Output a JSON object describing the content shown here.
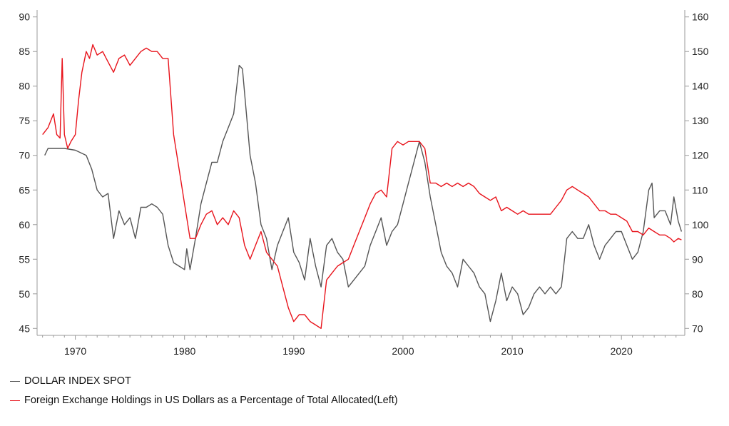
{
  "chart_data": {
    "type": "line",
    "x_ticks": [
      1970,
      1980,
      1990,
      2000,
      2010,
      2020
    ],
    "xlim": [
      1966.5,
      2025.8
    ],
    "y_left": {
      "ticks": [
        45,
        50,
        55,
        60,
        65,
        70,
        75,
        80,
        85,
        90
      ],
      "ylim": [
        44,
        91
      ]
    },
    "y_right": {
      "ticks": [
        70,
        80,
        90,
        100,
        110,
        120,
        130,
        140,
        150,
        160
      ],
      "ylim": [
        68,
        162
      ]
    },
    "grid": false,
    "legend_position": "bottom-left",
    "series": [
      {
        "name": "DOLLAR INDEX SPOT",
        "axis": "right",
        "color": "#555555",
        "points": [
          [
            1967.2,
            120
          ],
          [
            1967.5,
            122
          ],
          [
            1968,
            122
          ],
          [
            1969,
            122
          ],
          [
            1970,
            121.5
          ],
          [
            1971,
            120
          ],
          [
            1971.5,
            116
          ],
          [
            1972,
            110
          ],
          [
            1972.5,
            108
          ],
          [
            1973,
            109
          ],
          [
            1973.5,
            96
          ],
          [
            1974,
            104
          ],
          [
            1974.5,
            100
          ],
          [
            1975,
            102
          ],
          [
            1975.5,
            96
          ],
          [
            1976,
            105
          ],
          [
            1976.5,
            105
          ],
          [
            1977,
            106
          ],
          [
            1977.5,
            105
          ],
          [
            1978,
            103
          ],
          [
            1978.5,
            94
          ],
          [
            1979,
            89
          ],
          [
            1979.5,
            88
          ],
          [
            1980,
            87
          ],
          [
            1980.2,
            93
          ],
          [
            1980.5,
            87
          ],
          [
            1981,
            96
          ],
          [
            1981.5,
            106
          ],
          [
            1982,
            112
          ],
          [
            1982.5,
            118
          ],
          [
            1983,
            118
          ],
          [
            1983.5,
            124
          ],
          [
            1984,
            128
          ],
          [
            1984.5,
            132
          ],
          [
            1985,
            146
          ],
          [
            1985.3,
            145
          ],
          [
            1985.5,
            138
          ],
          [
            1986,
            120
          ],
          [
            1986.5,
            112
          ],
          [
            1987,
            100
          ],
          [
            1987.5,
            96
          ],
          [
            1988,
            87
          ],
          [
            1988.5,
            94
          ],
          [
            1989,
            98
          ],
          [
            1989.5,
            102
          ],
          [
            1990,
            92
          ],
          [
            1990.5,
            89
          ],
          [
            1991,
            84
          ],
          [
            1991.5,
            96
          ],
          [
            1992,
            88
          ],
          [
            1992.5,
            82
          ],
          [
            1993,
            94
          ],
          [
            1993.5,
            96
          ],
          [
            1994,
            92
          ],
          [
            1994.5,
            90
          ],
          [
            1995,
            82
          ],
          [
            1995.5,
            84
          ],
          [
            1996,
            86
          ],
          [
            1996.5,
            88
          ],
          [
            1997,
            94
          ],
          [
            1997.5,
            98
          ],
          [
            1998,
            102
          ],
          [
            1998.5,
            94
          ],
          [
            1999,
            98
          ],
          [
            1999.5,
            100
          ],
          [
            2000,
            106
          ],
          [
            2000.5,
            112
          ],
          [
            2001,
            118
          ],
          [
            2001.5,
            124
          ],
          [
            2002,
            118
          ],
          [
            2002.5,
            108
          ],
          [
            2003,
            100
          ],
          [
            2003.5,
            92
          ],
          [
            2004,
            88
          ],
          [
            2004.5,
            86
          ],
          [
            2005,
            82
          ],
          [
            2005.5,
            90
          ],
          [
            2006,
            88
          ],
          [
            2006.5,
            86
          ],
          [
            2007,
            82
          ],
          [
            2007.5,
            80
          ],
          [
            2008,
            72
          ],
          [
            2008.5,
            78
          ],
          [
            2009,
            86
          ],
          [
            2009.5,
            78
          ],
          [
            2010,
            82
          ],
          [
            2010.5,
            80
          ],
          [
            2011,
            74
          ],
          [
            2011.5,
            76
          ],
          [
            2012,
            80
          ],
          [
            2012.5,
            82
          ],
          [
            2013,
            80
          ],
          [
            2013.5,
            82
          ],
          [
            2014,
            80
          ],
          [
            2014.5,
            82
          ],
          [
            2015,
            96
          ],
          [
            2015.5,
            98
          ],
          [
            2016,
            96
          ],
          [
            2016.5,
            96
          ],
          [
            2017,
            100
          ],
          [
            2017.5,
            94
          ],
          [
            2018,
            90
          ],
          [
            2018.5,
            94
          ],
          [
            2019,
            96
          ],
          [
            2019.5,
            98
          ],
          [
            2020,
            98
          ],
          [
            2020.5,
            94
          ],
          [
            2021,
            90
          ],
          [
            2021.5,
            92
          ],
          [
            2022,
            98
          ],
          [
            2022.5,
            110
          ],
          [
            2022.8,
            112
          ],
          [
            2023,
            102
          ],
          [
            2023.5,
            104
          ],
          [
            2024,
            104
          ],
          [
            2024.5,
            100
          ],
          [
            2024.8,
            108
          ],
          [
            2025.2,
            101
          ],
          [
            2025.5,
            98
          ]
        ]
      },
      {
        "name": "Foreign Exchange Holdings in US Dollars as a Percentage of Total Allocated(Left)",
        "axis": "left",
        "color": "#e8131b",
        "points": [
          [
            1967,
            73
          ],
          [
            1967.5,
            74
          ],
          [
            1968,
            76
          ],
          [
            1968.3,
            73
          ],
          [
            1968.6,
            72.5
          ],
          [
            1968.8,
            84
          ],
          [
            1969,
            73
          ],
          [
            1969.3,
            71
          ],
          [
            1969.6,
            72
          ],
          [
            1970,
            73
          ],
          [
            1970.3,
            78
          ],
          [
            1970.6,
            82
          ],
          [
            1971,
            85
          ],
          [
            1971.3,
            84
          ],
          [
            1971.6,
            86
          ],
          [
            1972,
            84.5
          ],
          [
            1972.5,
            85
          ],
          [
            1973,
            83.5
          ],
          [
            1973.5,
            82
          ],
          [
            1974,
            84
          ],
          [
            1974.5,
            84.5
          ],
          [
            1975,
            83
          ],
          [
            1975.5,
            84
          ],
          [
            1976,
            85
          ],
          [
            1976.5,
            85.5
          ],
          [
            1977,
            85
          ],
          [
            1977.5,
            85
          ],
          [
            1978,
            84
          ],
          [
            1978.5,
            84
          ],
          [
            1979,
            73
          ],
          [
            1979.5,
            68
          ],
          [
            1980,
            63
          ],
          [
            1980.5,
            58
          ],
          [
            1981,
            58
          ],
          [
            1981.5,
            60
          ],
          [
            1982,
            61.5
          ],
          [
            1982.5,
            62
          ],
          [
            1983,
            60
          ],
          [
            1983.5,
            61
          ],
          [
            1984,
            60
          ],
          [
            1984.5,
            62
          ],
          [
            1985,
            61
          ],
          [
            1985.5,
            57
          ],
          [
            1986,
            55
          ],
          [
            1986.5,
            57
          ],
          [
            1987,
            59
          ],
          [
            1987.5,
            56
          ],
          [
            1988,
            55
          ],
          [
            1988.5,
            54
          ],
          [
            1989,
            51
          ],
          [
            1989.5,
            48
          ],
          [
            1990,
            46
          ],
          [
            1990.5,
            47
          ],
          [
            1991,
            47
          ],
          [
            1991.5,
            46
          ],
          [
            1992,
            45.5
          ],
          [
            1992.5,
            45
          ],
          [
            1993,
            52
          ],
          [
            1993.5,
            53
          ],
          [
            1994,
            54
          ],
          [
            1994.5,
            54.5
          ],
          [
            1995,
            55
          ],
          [
            1995.5,
            57
          ],
          [
            1996,
            59
          ],
          [
            1996.5,
            61
          ],
          [
            1997,
            63
          ],
          [
            1997.5,
            64.5
          ],
          [
            1998,
            65
          ],
          [
            1998.5,
            64
          ],
          [
            1999,
            71
          ],
          [
            1999.5,
            72
          ],
          [
            2000,
            71.5
          ],
          [
            2000.5,
            72
          ],
          [
            2001,
            72
          ],
          [
            2001.5,
            72
          ],
          [
            2002,
            71
          ],
          [
            2002.5,
            66
          ],
          [
            2003,
            66
          ],
          [
            2003.5,
            65.5
          ],
          [
            2004,
            66
          ],
          [
            2004.5,
            65.5
          ],
          [
            2005,
            66
          ],
          [
            2005.5,
            65.5
          ],
          [
            2006,
            66
          ],
          [
            2006.5,
            65.5
          ],
          [
            2007,
            64.5
          ],
          [
            2007.5,
            64
          ],
          [
            2008,
            63.5
          ],
          [
            2008.5,
            64
          ],
          [
            2009,
            62
          ],
          [
            2009.5,
            62.5
          ],
          [
            2010,
            62
          ],
          [
            2010.5,
            61.5
          ],
          [
            2011,
            62
          ],
          [
            2011.5,
            61.5
          ],
          [
            2012,
            61.5
          ],
          [
            2012.5,
            61.5
          ],
          [
            2013,
            61.5
          ],
          [
            2013.5,
            61.5
          ],
          [
            2014,
            62.5
          ],
          [
            2014.5,
            63.5
          ],
          [
            2015,
            65
          ],
          [
            2015.5,
            65.5
          ],
          [
            2016,
            65
          ],
          [
            2016.5,
            64.5
          ],
          [
            2017,
            64
          ],
          [
            2017.5,
            63
          ],
          [
            2018,
            62
          ],
          [
            2018.5,
            62
          ],
          [
            2019,
            61.5
          ],
          [
            2019.5,
            61.5
          ],
          [
            2020,
            61
          ],
          [
            2020.5,
            60.5
          ],
          [
            2021,
            59
          ],
          [
            2021.5,
            59
          ],
          [
            2022,
            58.5
          ],
          [
            2022.5,
            59.5
          ],
          [
            2023,
            59
          ],
          [
            2023.5,
            58.5
          ],
          [
            2024,
            58.5
          ],
          [
            2024.5,
            58
          ],
          [
            2024.8,
            57.5
          ],
          [
            2025.2,
            58
          ],
          [
            2025.5,
            57.8
          ]
        ]
      }
    ]
  }
}
